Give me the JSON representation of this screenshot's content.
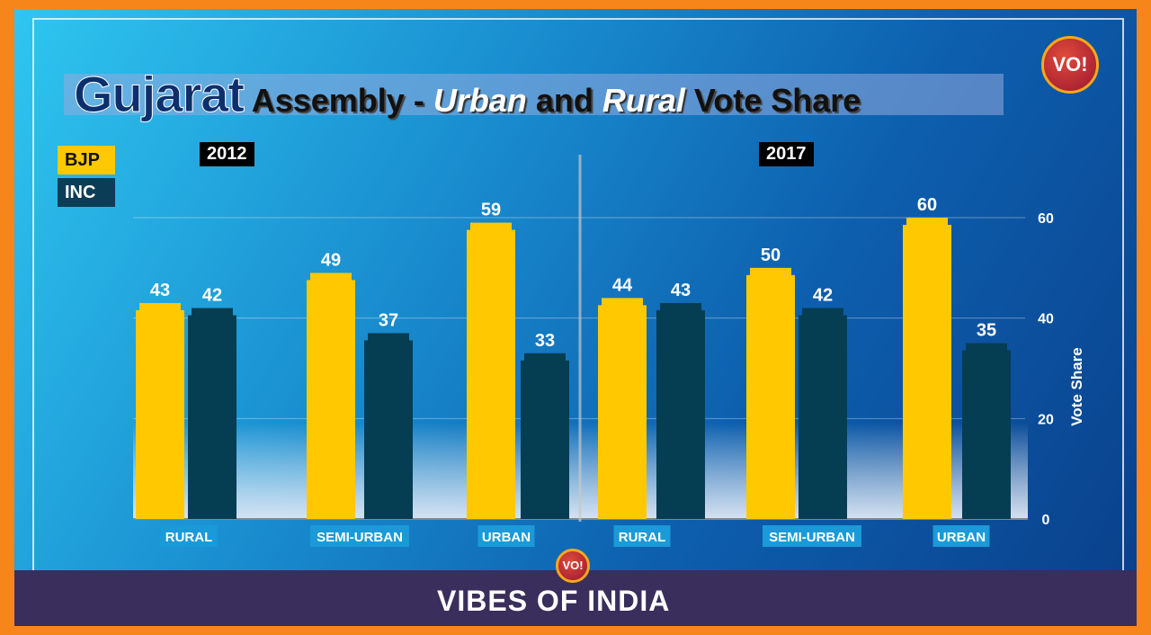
{
  "title": {
    "part1": "Gujarat",
    "part2": " Assembly - ",
    "part3": "Urban",
    "part4": " and ",
    "part5": "Rural",
    "part6": " Vote Share"
  },
  "brand": {
    "logo_text": "VO!",
    "footer": "VIBES OF INDIA"
  },
  "colors": {
    "bjp": "#ffc800",
    "inc": "#053d52"
  },
  "chart_data": {
    "type": "bar",
    "title": "Gujarat Assembly - Urban and Rural Vote Share",
    "ylabel": "Vote Share",
    "ylim": [
      0,
      60
    ],
    "yticks": [
      0,
      20,
      40,
      60
    ],
    "grid": true,
    "legend": [
      "BJP",
      "INC"
    ],
    "legend_position": "top-left",
    "panels": [
      {
        "year": "2012",
        "categories": [
          "RURAL",
          "SEMI-URBAN",
          "URBAN"
        ],
        "series": [
          {
            "name": "BJP",
            "values": [
              43,
              49,
              59
            ]
          },
          {
            "name": "INC",
            "values": [
              42,
              37,
              33
            ]
          }
        ]
      },
      {
        "year": "2017",
        "categories": [
          "RURAL",
          "SEMI-URBAN",
          "URBAN"
        ],
        "series": [
          {
            "name": "BJP",
            "values": [
              44,
              50,
              60
            ]
          },
          {
            "name": "INC",
            "values": [
              43,
              42,
              35
            ]
          }
        ]
      }
    ]
  }
}
